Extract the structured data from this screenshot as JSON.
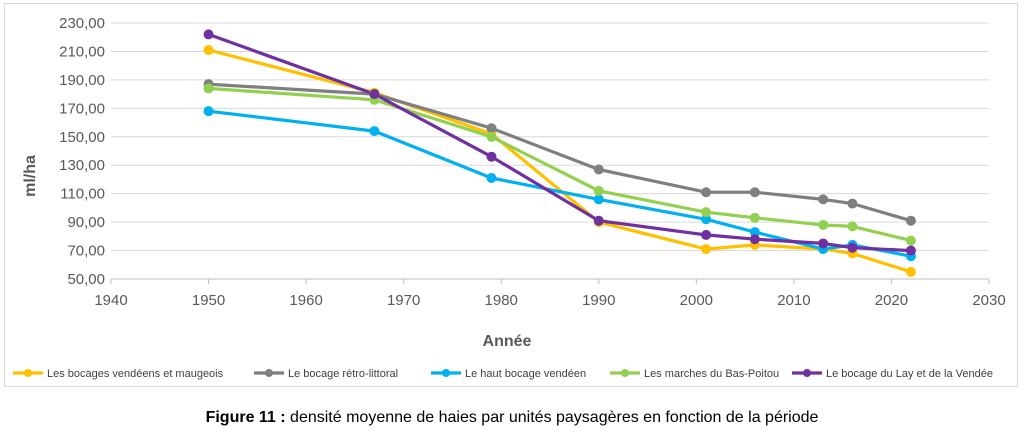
{
  "caption": {
    "prefix": "Figure 11 :",
    "text": " densité moyenne de haies par unités paysagères en fonction de la période"
  },
  "chart_data": {
    "type": "line",
    "title": "",
    "xlabel": "Année",
    "ylabel": "ml/ha",
    "xlim": [
      1940,
      2030
    ],
    "ylim": [
      50,
      230
    ],
    "x_ticks": [
      1940,
      1950,
      1960,
      1970,
      1980,
      1990,
      2000,
      2010,
      2020,
      2030
    ],
    "x_tick_labels": [
      "1940",
      "1950",
      "1960",
      "1970",
      "1980",
      "1990",
      "2000",
      "2010",
      "2020",
      "2030"
    ],
    "y_ticks": [
      50,
      70,
      90,
      110,
      130,
      150,
      170,
      190,
      210,
      230
    ],
    "y_tick_labels": [
      "50,00",
      "70,00",
      "90,00",
      "110,00",
      "130,00",
      "150,00",
      "170,00",
      "190,00",
      "210,00",
      "230,00"
    ],
    "grid": "horizontal",
    "legend_position": "bottom",
    "series": [
      {
        "name": "Les bocages vendéens et maugeois",
        "color": "#FFC000",
        "points": [
          [
            1950,
            211
          ],
          [
            1967,
            181
          ],
          [
            1979,
            152
          ],
          [
            1990,
            90
          ],
          [
            2001,
            71
          ],
          [
            2006,
            74
          ],
          [
            2013,
            71
          ],
          [
            2016,
            68
          ],
          [
            2022,
            55
          ]
        ]
      },
      {
        "name": "Le bocage rétro-littoral",
        "color": "#7F7F7F",
        "points": [
          [
            1950,
            187
          ],
          [
            1967,
            180
          ],
          [
            1979,
            156
          ],
          [
            1990,
            127
          ],
          [
            2001,
            111
          ],
          [
            2006,
            111
          ],
          [
            2013,
            106
          ],
          [
            2016,
            103
          ],
          [
            2022,
            91
          ]
        ]
      },
      {
        "name": "Le haut bocage vendéen",
        "color": "#00B0F0",
        "points": [
          [
            1950,
            168
          ],
          [
            1967,
            154
          ],
          [
            1979,
            121
          ],
          [
            1990,
            106
          ],
          [
            2001,
            92
          ],
          [
            2006,
            83
          ],
          [
            2013,
            71
          ],
          [
            2016,
            74
          ],
          [
            2022,
            66
          ]
        ]
      },
      {
        "name": "Les marches du Bas-Poitou",
        "color": "#92D050",
        "points": [
          [
            1950,
            184
          ],
          [
            1967,
            176
          ],
          [
            1979,
            150
          ],
          [
            1990,
            112
          ],
          [
            2001,
            97
          ],
          [
            2006,
            93
          ],
          [
            2013,
            88
          ],
          [
            2016,
            87
          ],
          [
            2022,
            77
          ]
        ]
      },
      {
        "name": "Le bocage du Lay et de la Vendée",
        "color": "#7030A0",
        "points": [
          [
            1950,
            222
          ],
          [
            1967,
            180
          ],
          [
            1979,
            136
          ],
          [
            1990,
            91
          ],
          [
            2001,
            81
          ],
          [
            2006,
            78
          ],
          [
            2013,
            75
          ],
          [
            2016,
            72
          ],
          [
            2022,
            70
          ]
        ]
      }
    ]
  }
}
